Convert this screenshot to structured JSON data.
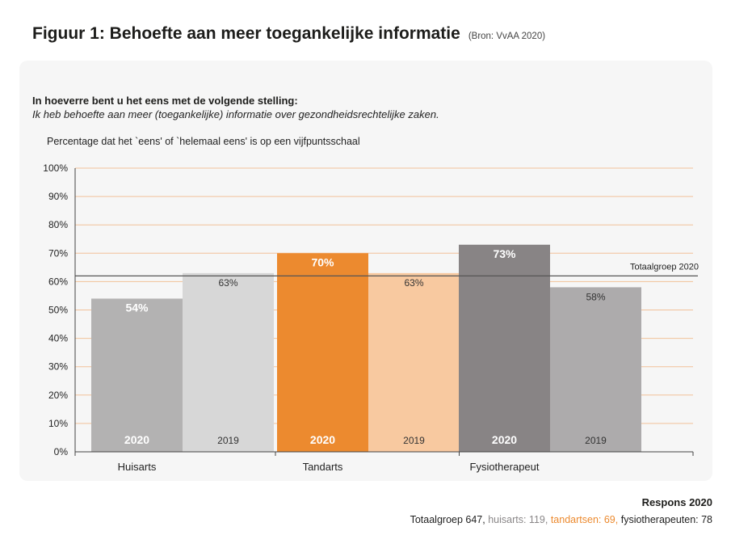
{
  "header": {
    "title": "Figuur 1: Behoefte aan meer toegankelijke informatie",
    "source": "(Bron: VvAA 2020)"
  },
  "question": {
    "line1": "In hoeverre bent u het eens met de volgende stelling:",
    "line2": "Ik heb behoefte aan meer (toegankelijke) informatie over gezondheidsrechtelijke zaken."
  },
  "colors": {
    "huisarts_2020": "#b3b2b2",
    "huisarts_2019": "#d7d7d7",
    "tandarts_2020": "#ec8a2f",
    "tandarts_2019": "#f8c9a0",
    "fysio_2020": "#888485",
    "fysio_2019": "#adabac",
    "gridline": "#f2c199",
    "refline": "#555555"
  },
  "chart_data": {
    "type": "bar",
    "title": "Percentage dat het `eens' of `helemaal eens' is op een vijfpuntsschaal",
    "categories": [
      "Huisarts",
      "Tandarts",
      "Fysiotherapeut"
    ],
    "series": [
      {
        "name": "2020",
        "values": [
          54,
          70,
          73
        ],
        "value_labels": [
          "54%",
          "70%",
          "73%"
        ]
      },
      {
        "name": "2019",
        "values": [
          63,
          63,
          58
        ],
        "value_labels": [
          "63%",
          "63%",
          "58%"
        ]
      }
    ],
    "ylim": [
      0,
      100
    ],
    "yticks": [
      "0%",
      "10%",
      "20%",
      "30%",
      "40%",
      "50%",
      "60%",
      "70%",
      "80%",
      "90%",
      "100%"
    ],
    "grid": true,
    "reference_line": {
      "value": 62,
      "label": "Totaalgroep 2020"
    },
    "xlabel": "",
    "ylabel": ""
  },
  "response": {
    "title": "Respons 2020",
    "total": "Totaalgroep 647,",
    "huisarts": "huisarts: 119,",
    "tandarts": "tandartsen: 69,",
    "fysio": "fysiotherapeuten: 78"
  }
}
